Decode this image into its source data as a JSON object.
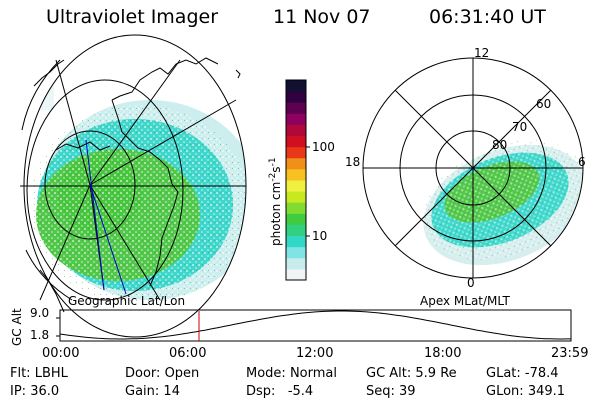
{
  "header": {
    "instrument": "Ultraviolet Imager",
    "date": "11 Nov 07",
    "time": "06:31:40 UT"
  },
  "left_panel": {
    "caption": "Geographic Lat/Lon"
  },
  "right_panel": {
    "caption": "Apex MLat/MLT",
    "mlt_labels": [
      "12",
      "18",
      "6",
      "0"
    ],
    "mlat_labels": [
      "60",
      "70",
      "80"
    ]
  },
  "colorbar": {
    "label": "photon cm",
    "exp1": "-2",
    "unit_s": "s",
    "exp2": "-1",
    "ticks": [
      "100",
      "10"
    ],
    "colors": [
      "#f0f4f4",
      "#c8ecec",
      "#80e4e4",
      "#30d8c8",
      "#30d080",
      "#40cc40",
      "#80dc30",
      "#c8e820",
      "#f0f040",
      "#f8c020",
      "#f09018",
      "#e83818",
      "#d01020",
      "#b00838",
      "#900060",
      "#5c0050",
      "#300040",
      "#101030"
    ]
  },
  "orbit_plot": {
    "ylabel": "GC Alt",
    "y_ticks": [
      "9.0",
      "1.8"
    ],
    "x_ticks": [
      "00:00",
      "06:00",
      "12:00",
      "18:00",
      "23:59"
    ],
    "current_time_hours": 6.53
  },
  "status": {
    "row1": [
      {
        "key": "Flt:",
        "value": "LBHL"
      },
      {
        "key": "Door:",
        "value": "Open"
      },
      {
        "key": "Mode:",
        "value": "Normal"
      },
      {
        "key": "GC Alt:",
        "value": "5.9 Re"
      },
      {
        "key": "GLat:",
        "value": "-78.4"
      }
    ],
    "row2": [
      {
        "key": "IP:",
        "value": "36.0"
      },
      {
        "key": "Gain:",
        "value": "14"
      },
      {
        "key": "Dsp:",
        "value": "-5.4"
      },
      {
        "key": "Seq:",
        "value": "39"
      },
      {
        "key": "GLon:",
        "value": "349.1"
      }
    ]
  }
}
